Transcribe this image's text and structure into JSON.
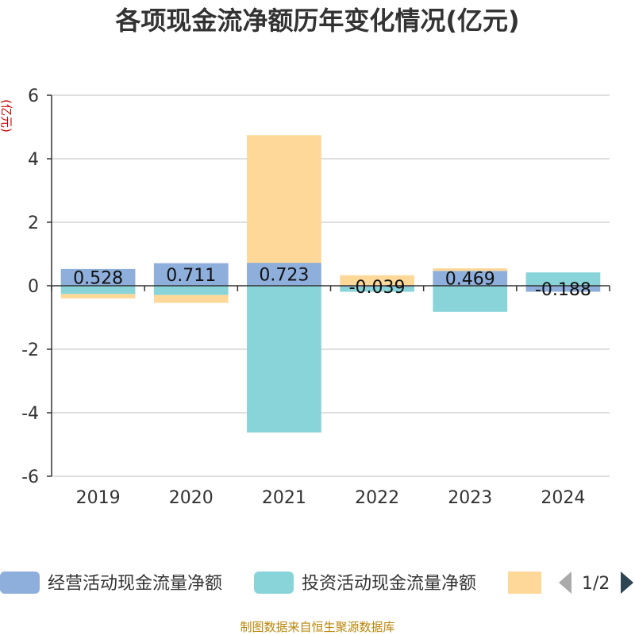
{
  "chart_data": {
    "type": "bar",
    "stacked": true,
    "title": "各项现金流净额历年变化情况(亿元)",
    "ylabel": "(亿元)",
    "xlabel": "",
    "categories": [
      "2019",
      "2020",
      "2021",
      "2022",
      "2023",
      "2024"
    ],
    "ylim": [
      -6,
      6
    ],
    "yticks": [
      -6,
      -4,
      -2,
      0,
      2,
      4,
      6
    ],
    "grid": true,
    "series": [
      {
        "name": "经营活动现金流量净额",
        "color": "#8eaedb",
        "values": [
          0.528,
          0.711,
          0.723,
          -0.039,
          0.469,
          -0.188
        ]
      },
      {
        "name": "投资活动现金流量净额",
        "color": "#88d4d8",
        "values": [
          -0.26,
          -0.29,
          -4.62,
          -0.15,
          -0.82,
          0.42
        ]
      },
      {
        "name": "",
        "color": "#fed898",
        "values": [
          -0.14,
          -0.25,
          4.02,
          0.33,
          0.08,
          0.0
        ]
      }
    ],
    "data_labels": [
      "0.528",
      "0.711",
      "0.723",
      "-0.039",
      "0.469",
      "-0.188"
    ],
    "legend_position": "bottom"
  },
  "legend": {
    "page_indicator": "1/2"
  },
  "source": "制图数据来自恒生聚源数据库"
}
